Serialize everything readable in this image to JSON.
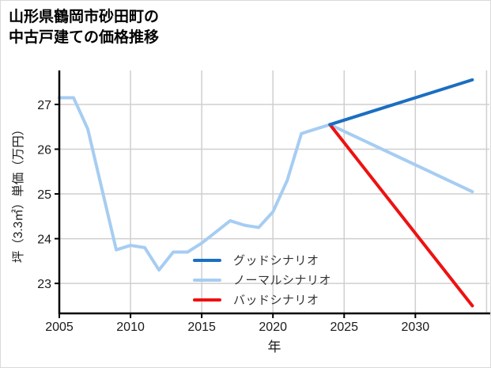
{
  "title": {
    "line1": "山形県鶴岡市砂田町の",
    "line2": "中古戸建ての価格推移"
  },
  "chart_data": {
    "type": "line",
    "title": "山形県鶴岡市砂田町の中古戸建ての価格推移",
    "xlabel": "年",
    "ylabel": "坪（3.3㎡）単価（万円）",
    "x_tick_labels": [
      "2005",
      "2010",
      "2015",
      "2020",
      "2025",
      "2030"
    ],
    "y_tick_labels": [
      "23",
      "24",
      "25",
      "26",
      "27"
    ],
    "x_grid_years": [
      2010,
      2015,
      2020,
      2025,
      2030,
      2035
    ],
    "xlim": [
      2005,
      2035.2
    ],
    "ylim": [
      22.33,
      27.76
    ],
    "grid": true,
    "legend_position": "lower-center",
    "colors": {
      "good": "#1b6ec2",
      "normal": "#a6cdf2",
      "bad": "#ee1111",
      "gridline": "#cfcfcf",
      "spine": "#000000",
      "tick_text": "#1a1a1a"
    },
    "history": {
      "name": "ノーマルシナリオ",
      "color": "#a6cdf2",
      "years": [
        2005,
        2006,
        2007,
        2008,
        2009,
        2010,
        2011,
        2012,
        2013,
        2014,
        2015,
        2016,
        2017,
        2018,
        2019,
        2020,
        2021,
        2022,
        2023,
        2024
      ],
      "values": [
        27.15,
        27.15,
        26.45,
        25.1,
        23.75,
        23.85,
        23.8,
        23.3,
        23.7,
        23.7,
        23.9,
        24.15,
        24.4,
        24.3,
        24.25,
        24.6,
        25.3,
        26.35,
        26.45,
        26.55
      ]
    },
    "series": [
      {
        "name": "グッドシナリオ",
        "color": "#1b6ec2",
        "years": [
          2024,
          2034
        ],
        "values": [
          26.55,
          27.55
        ]
      },
      {
        "name": "ノーマルシナリオ",
        "color": "#a6cdf2",
        "years": [
          2024,
          2034
        ],
        "values": [
          26.55,
          25.05
        ]
      },
      {
        "name": "バッドシナリオ",
        "color": "#ee1111",
        "years": [
          2024,
          2034
        ],
        "values": [
          26.55,
          22.5
        ]
      }
    ]
  }
}
